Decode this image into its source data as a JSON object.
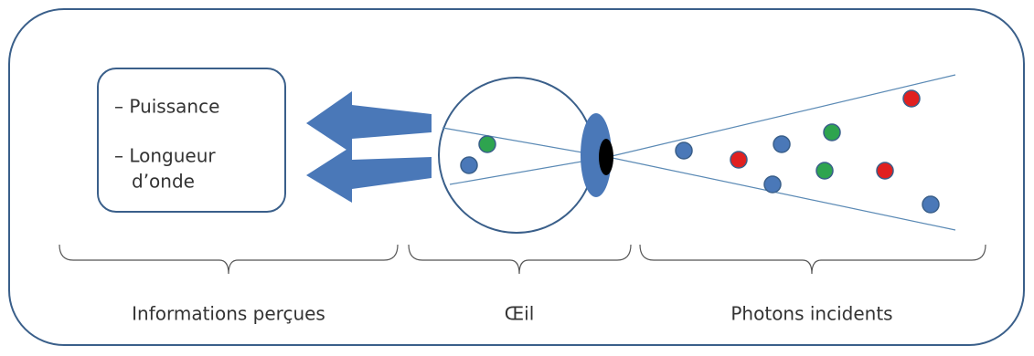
{
  "info_box": {
    "lines": [
      "– Puissance",
      "– Longueur",
      "d’onde"
    ]
  },
  "sections": [
    {
      "label": "Informations perçues"
    },
    {
      "label": "Œil"
    },
    {
      "label": "Photons incidents"
    }
  ]
}
